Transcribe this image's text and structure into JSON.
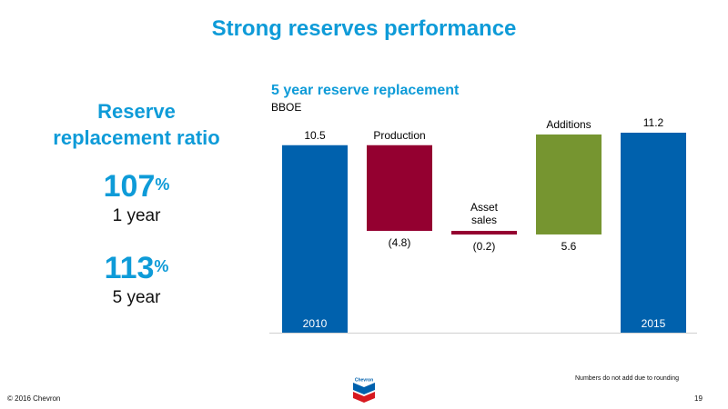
{
  "slide": {
    "title": "Strong reserves performance",
    "footnote": "Numbers do not add due to rounding",
    "copyright": "© 2016 Chevron",
    "page_number": "19",
    "logo_text": "Chevron"
  },
  "left_panel": {
    "heading_line1": "Reserve",
    "heading_line2": "replacement ratio",
    "stats": [
      {
        "value": "107",
        "unit": "%",
        "label": "1 year"
      },
      {
        "value": "113",
        "unit": "%",
        "label": "5 year"
      }
    ]
  },
  "colors": {
    "accent": "#0e9bd8",
    "bar_blue": "#0061ad",
    "bar_red": "#940030",
    "bar_green": "#769530"
  },
  "chart_data": {
    "type": "bar",
    "subtype": "waterfall",
    "title": "5 year reserve replacement",
    "unit": "BBOE",
    "steps": [
      {
        "label": "2010",
        "value": 10.5,
        "value_label": "10.5",
        "kind": "total",
        "color": "#0061ad"
      },
      {
        "label": "Production",
        "value": -4.8,
        "value_label": "(4.8)",
        "kind": "delta",
        "color": "#940030"
      },
      {
        "label": "Asset sales",
        "value": -0.2,
        "value_label": "(0.2)",
        "kind": "delta",
        "color": "#940030"
      },
      {
        "label": "Additions",
        "value": 5.6,
        "value_label": "5.6",
        "kind": "delta",
        "color": "#769530"
      },
      {
        "label": "2015",
        "value": 11.2,
        "value_label": "11.2",
        "kind": "total",
        "color": "#0061ad"
      }
    ],
    "ylim": [
      0,
      11.2
    ],
    "grid": false
  }
}
